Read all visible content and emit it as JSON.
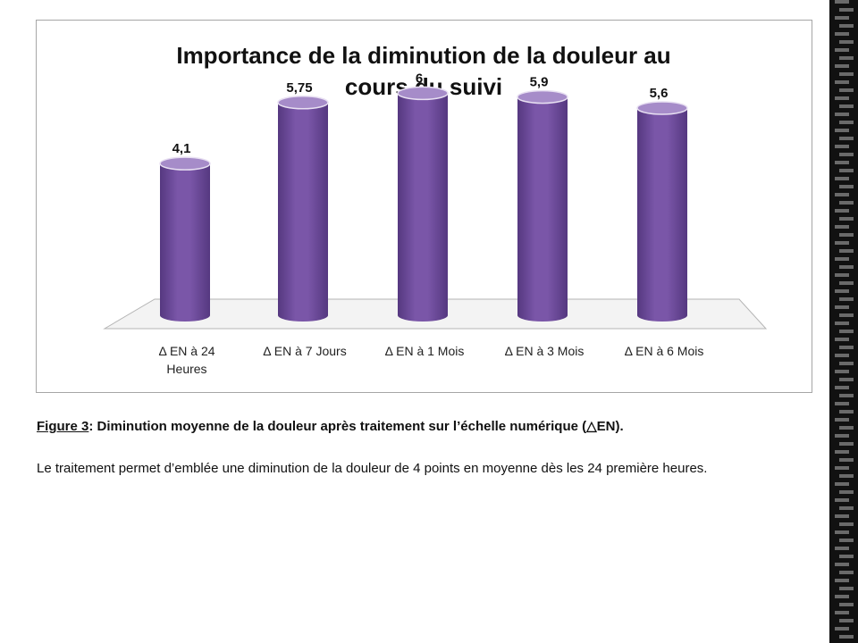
{
  "chart_data": {
    "type": "bar",
    "title": "Importance de la diminution de la douleur au cours du suivi",
    "title_lines": [
      "Importance de la diminution de la douleur au",
      "cours du suivi"
    ],
    "categories": [
      "Δ EN à 24 Heures",
      "Δ EN à 7 Jours",
      "Δ EN à 1 Mois",
      "Δ EN à 3 Mois",
      "Δ EN à 6 Mois"
    ],
    "category_lines": [
      [
        "Δ EN à 24",
        "Heures"
      ],
      [
        "Δ EN à 7 Jours"
      ],
      [
        "Δ EN à 1 Mois"
      ],
      [
        "Δ EN à 3 Mois"
      ],
      [
        "Δ EN à 6 Mois"
      ]
    ],
    "values": [
      4.1,
      5.75,
      6,
      5.9,
      5.6
    ],
    "value_labels": [
      "4,1",
      "5,75",
      "6",
      "5,9",
      "5,6"
    ],
    "ylim": [
      0,
      7
    ],
    "grid": false,
    "legend": "none",
    "bar_shape": "cylinder",
    "colors": {
      "bar": "#7a56a8",
      "bar_dark": "#553880",
      "bar_top": "#a68cc9"
    }
  },
  "caption": {
    "figure_label": "Figure 3",
    "figure_text": ": Diminution moyenne de la douleur après traitement sur l’échelle numérique (△EN).",
    "body": "Le traitement permet d’emblée une diminution de la douleur de 4 points en moyenne dès les 24 première heures."
  }
}
